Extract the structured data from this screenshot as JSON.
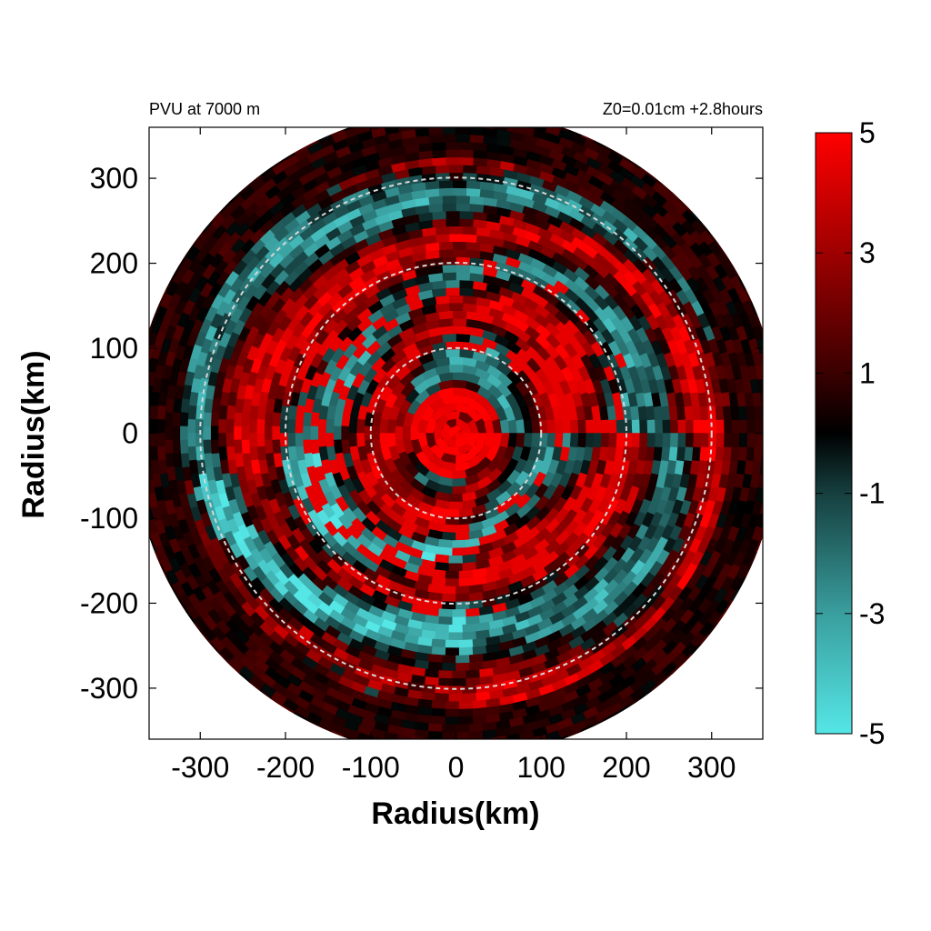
{
  "chart_data": {
    "type": "heatmap",
    "title_left": "PVU at  7000 m",
    "title_right": "Z0=0.01cm  +2.8hours",
    "xlabel": "Radius(km)",
    "ylabel": "Radius(km)",
    "xlim": [
      -360,
      360
    ],
    "ylim": [
      -360,
      360
    ],
    "xticks": [
      -300,
      -200,
      -100,
      0,
      100,
      200,
      300
    ],
    "yticks": [
      300,
      200,
      100,
      0,
      -100,
      -200,
      -300
    ],
    "domain_radius_km": 380,
    "reference_circles_km": [
      100,
      200,
      300
    ],
    "colorbar": {
      "min": -5,
      "max": 5,
      "ticks": [
        5,
        3,
        1,
        -1,
        -3,
        -5
      ],
      "colors": {
        "-5": "#55e6e6",
        "-3": "#3a9e9e",
        "-1": "#163f3f",
        "0": "#000000",
        "1": "#3a0000",
        "3": "#9e0000",
        "5": "#ff0000"
      }
    },
    "field_description": "Storm-relative potential vorticity (PVU) at 7000 m; strong positive core near the center, alternating positive and negative annular bands outward, cyan negative bands strongest southwest between 150 and 300 km."
  }
}
